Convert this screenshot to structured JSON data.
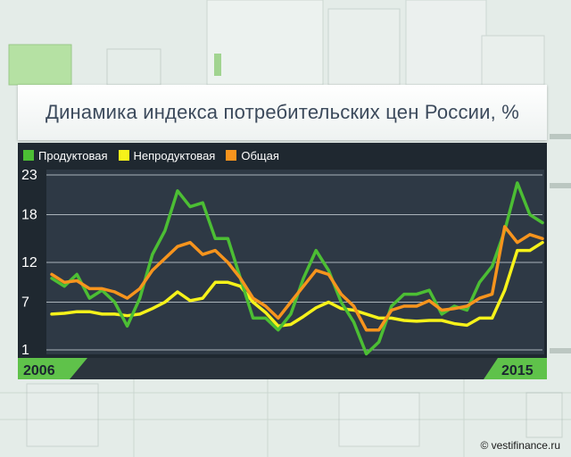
{
  "title": "Динамика индекса потребительских цен России, %",
  "credit": "© vestifinance.ru",
  "legend": [
    {
      "label": "Продуктовая",
      "color": "#4cbe34"
    },
    {
      "label": "Непродуктовая",
      "color": "#f6f21a"
    },
    {
      "label": "Общая",
      "color": "#f7941d"
    }
  ],
  "chart_data": {
    "type": "line",
    "title": "Динамика индекса потребительских цен России, %",
    "ylim": [
      1,
      23
    ],
    "y_ticks": [
      1,
      7,
      12,
      18,
      23
    ],
    "x_axis_labels": {
      "start": "2006",
      "end": "2015"
    },
    "grid": true,
    "legend_position": "top-left",
    "series": [
      {
        "name": "Продуктовая",
        "color": "#4cbe34",
        "values": [
          10,
          9,
          10.5,
          7.5,
          8.5,
          7,
          4,
          7.5,
          13,
          16,
          21,
          19,
          19.5,
          15,
          15,
          10,
          5,
          5,
          3.5,
          5.5,
          10,
          13.5,
          11,
          7,
          4.5,
          0.5,
          2,
          6.5,
          8,
          8,
          8.5,
          5.5,
          6.5,
          6,
          9.5,
          11.5,
          16,
          22,
          18,
          17
        ]
      },
      {
        "name": "Непродуктовая",
        "color": "#f6f21a",
        "values": [
          5.5,
          5.6,
          5.8,
          5.8,
          5.5,
          5.5,
          5.3,
          5.5,
          6.2,
          7,
          8.3,
          7.2,
          7.5,
          9.5,
          9.5,
          9,
          7,
          5.7,
          4,
          4.2,
          5.2,
          6.3,
          7,
          6.2,
          6,
          5.5,
          5,
          5,
          4.7,
          4.6,
          4.7,
          4.7,
          4.3,
          4.1,
          5,
          5,
          8.5,
          13.5,
          13.5,
          14.5
        ]
      },
      {
        "name": "Общая",
        "color": "#f7941d",
        "values": [
          10.5,
          9.5,
          9.7,
          8.7,
          8.7,
          8.3,
          7.5,
          8.7,
          11,
          12.5,
          14,
          14.5,
          13,
          13.5,
          12,
          10,
          7.5,
          6.5,
          5,
          7,
          9,
          11,
          10.5,
          8,
          6.5,
          3.5,
          3.5,
          6,
          6.5,
          6.5,
          7.2,
          6,
          6.2,
          6.5,
          7.5,
          8,
          16.5,
          14.5,
          15.5,
          15
        ]
      }
    ]
  }
}
